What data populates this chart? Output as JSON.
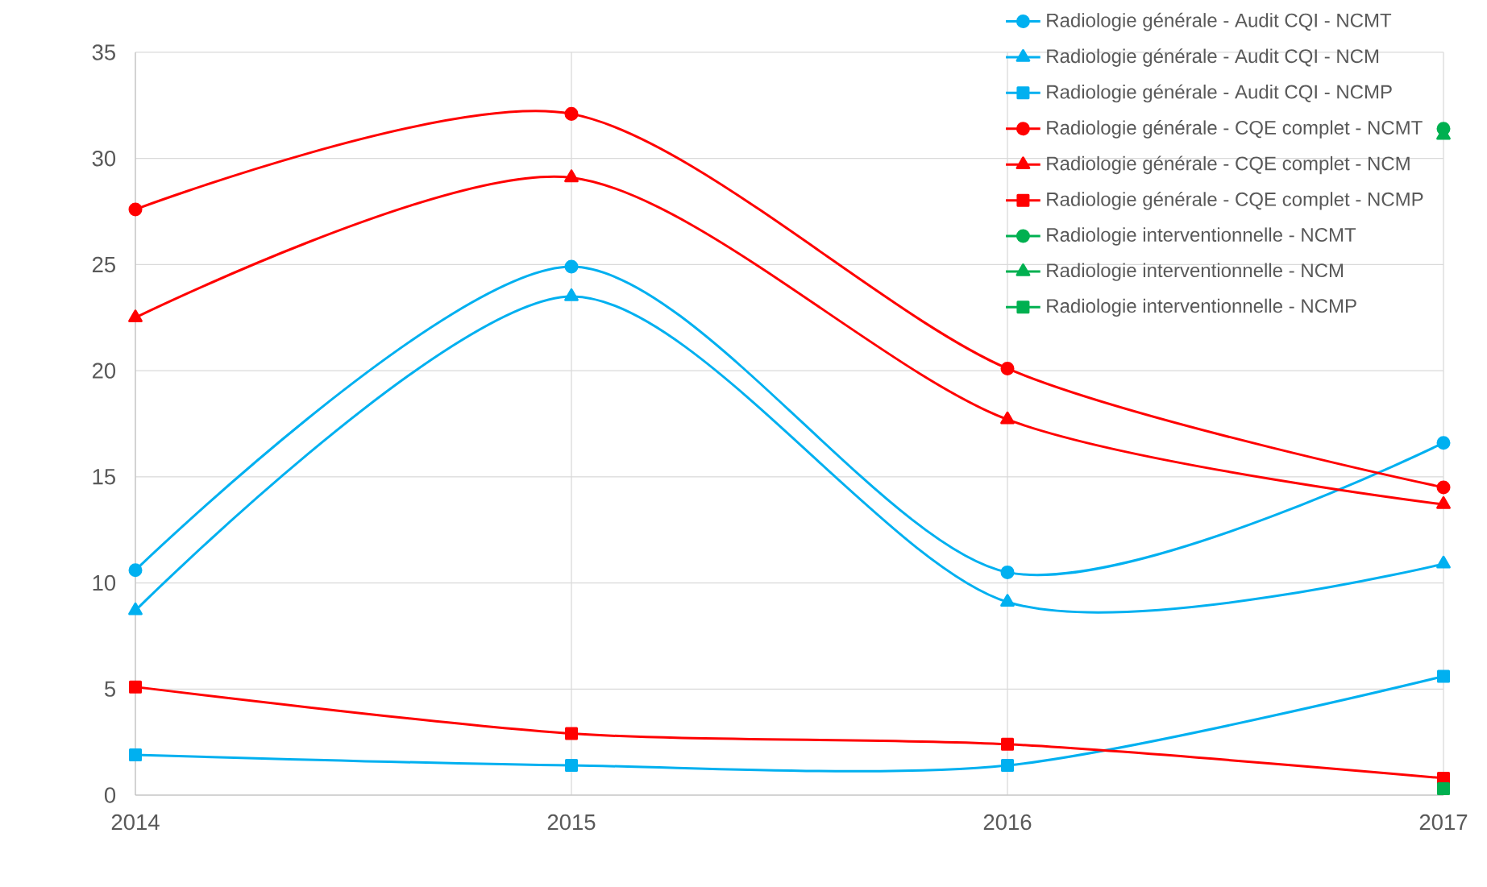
{
  "chart_data": {
    "type": "line",
    "categories": [
      "2014",
      "2015",
      "2016",
      "2017"
    ],
    "series": [
      {
        "name": "Radiologie générale - Audit CQI - NCMT",
        "color": "#00b0f0",
        "marker": "circle",
        "values": [
          10.6,
          24.9,
          10.5,
          16.6
        ]
      },
      {
        "name": "Radiologie générale - Audit CQI - NCM",
        "color": "#00b0f0",
        "marker": "triangle",
        "values": [
          8.7,
          23.5,
          9.1,
          10.9
        ]
      },
      {
        "name": "Radiologie générale - Audit CQI - NCMP",
        "color": "#00b0f0",
        "marker": "square",
        "values": [
          1.9,
          1.4,
          1.4,
          5.6
        ]
      },
      {
        "name": "Radiologie générale - CQE complet - NCMT",
        "color": "#ff0000",
        "marker": "circle",
        "values": [
          27.6,
          32.1,
          20.1,
          14.5
        ]
      },
      {
        "name": "Radiologie générale - CQE complet - NCM",
        "color": "#ff0000",
        "marker": "triangle",
        "values": [
          22.5,
          29.1,
          17.7,
          13.7
        ]
      },
      {
        "name": "Radiologie générale - CQE complet - NCMP",
        "color": "#ff0000",
        "marker": "square",
        "values": [
          5.1,
          2.9,
          2.4,
          0.8
        ]
      },
      {
        "name": "Radiologie interventionnelle - NCMT",
        "color": "#00b050",
        "marker": "circle",
        "values": [
          null,
          null,
          null,
          31.4
        ]
      },
      {
        "name": "Radiologie interventionnelle - NCM",
        "color": "#00b050",
        "marker": "triangle",
        "values": [
          null,
          null,
          null,
          31.1
        ]
      },
      {
        "name": "Radiologie interventionnelle - NCMP",
        "color": "#00b050",
        "marker": "square",
        "values": [
          null,
          null,
          null,
          0.3
        ]
      }
    ],
    "ylim": [
      0,
      35
    ],
    "yticks": [
      0,
      5,
      10,
      15,
      20,
      25,
      30,
      35
    ],
    "grid": true,
    "legend": "top right"
  }
}
